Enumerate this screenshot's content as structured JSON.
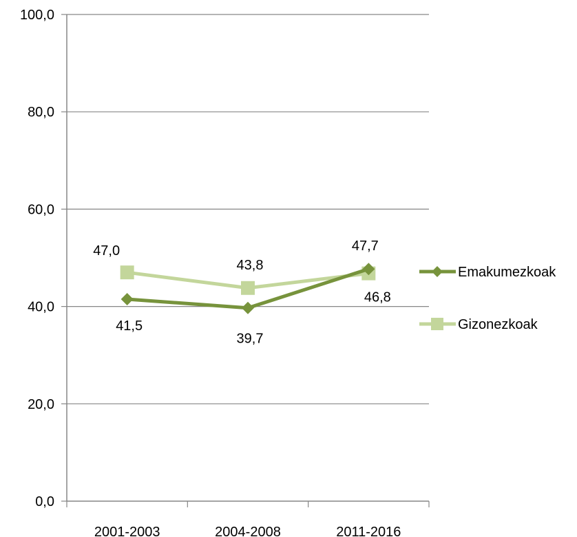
{
  "chart_data": {
    "type": "line",
    "categories": [
      "2001-2003",
      "2004-2008",
      "2011-2016"
    ],
    "ylim": [
      0,
      100
    ],
    "yticks": [
      0,
      20,
      40,
      60,
      80,
      100
    ],
    "ytick_labels": [
      "0,0",
      "20,0",
      "40,0",
      "60,0",
      "80,0",
      "100,0"
    ],
    "grid": true,
    "legend_position": "right",
    "series": [
      {
        "name": "Emakumezkoak",
        "values": [
          41.5,
          39.7,
          47.7
        ],
        "labels": [
          "41,5",
          "39,7",
          "47,7"
        ],
        "color": "#77933c",
        "marker": "diamond"
      },
      {
        "name": "Gizonezkoak",
        "values": [
          47.0,
          43.8,
          46.8
        ],
        "labels": [
          "47,0",
          "43,8",
          "46,8"
        ],
        "color": "#c3d69b",
        "marker": "square"
      }
    ]
  }
}
